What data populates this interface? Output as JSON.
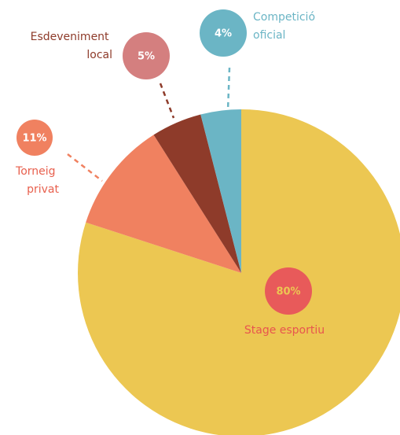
{
  "chart_data": {
    "type": "pie",
    "categories": [
      "Stage esportiu",
      "Torneig privat",
      "Esdeveniment local",
      "Competició oficial"
    ],
    "values": [
      80,
      11,
      5,
      4
    ],
    "value_labels": [
      "80%",
      "11%",
      "5%",
      "4%"
    ],
    "colors": [
      "#ecc752",
      "#f08160",
      "#8e3b2a",
      "#6bb5c5"
    ],
    "bubble_colors": [
      "#e85a5a",
      "#f08160",
      "#d47f7f",
      "#6bb5c5"
    ],
    "bubble_text_colors": [
      "#ecc752",
      "#ffffff",
      "#ffffff",
      "#ffffff"
    ],
    "label_colors": [
      "#e8554e",
      "#e8604e",
      "#8e3b2a",
      "#6bb5c5"
    ]
  }
}
